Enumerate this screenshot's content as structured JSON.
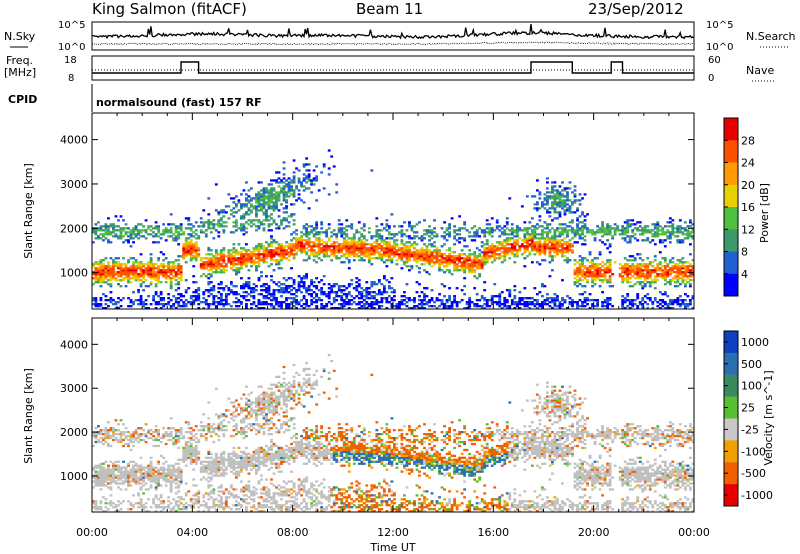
{
  "header": {
    "station": "King Salmon (fitACF)",
    "beam": "Beam 11",
    "date": "23/Sep/2012"
  },
  "noise_panel": {
    "left_label": "N.Sky",
    "right_label": "N.Search",
    "left_ticks": [
      "10^5",
      "10^0"
    ],
    "right_ticks": [
      "10^5",
      "10^0"
    ]
  },
  "freq_panel": {
    "left_label_line1": "Freq.",
    "left_label_line2": "[MHz]",
    "right_label": "Nave",
    "left_ticks": [
      "18",
      "8"
    ],
    "right_ticks": [
      "60",
      "0"
    ],
    "freq_steps": [
      {
        "start": 0.0,
        "end": 3.55,
        "level": "low"
      },
      {
        "start": 3.55,
        "end": 4.25,
        "level": "high"
      },
      {
        "start": 4.25,
        "end": 17.5,
        "level": "low"
      },
      {
        "start": 17.5,
        "end": 19.15,
        "level": "high"
      },
      {
        "start": 19.15,
        "end": 20.7,
        "level": "low"
      },
      {
        "start": 20.7,
        "end": 21.15,
        "level": "high"
      },
      {
        "start": 21.15,
        "end": 24.0,
        "level": "low"
      }
    ]
  },
  "cpid": {
    "label": "CPID",
    "value": "normalsound (fast) 157 RF"
  },
  "chart_data": [
    {
      "type": "heatmap",
      "name": "power",
      "ylabel": "Slant Range [km]",
      "y_ticks": [
        1000,
        2000,
        3000,
        4000
      ],
      "ylim": [
        180,
        4600
      ],
      "xlim": [
        0,
        24
      ],
      "colorbar_label": "Power [dB]",
      "colorbar_ticks": [
        4,
        8,
        12,
        16,
        20,
        24,
        28
      ],
      "colorbar_range": [
        0,
        32
      ],
      "colors": [
        "#0000ff",
        "#2060d0",
        "#3a9a6a",
        "#50c040",
        "#e6d000",
        "#ff9a00",
        "#ff5000",
        "#e80000"
      ]
    },
    {
      "type": "heatmap",
      "name": "velocity",
      "ylabel": "Slant Range [km]",
      "y_ticks": [
        1000,
        2000,
        3000,
        4000
      ],
      "ylim": [
        180,
        4600
      ],
      "xlim": [
        0,
        24
      ],
      "xlabel": "Time UT",
      "x_ticks": [
        "00:00",
        "04:00",
        "08:00",
        "12:00",
        "16:00",
        "20:00",
        "00:00"
      ],
      "colorbar_label": "Velocity [m s^-1]",
      "colorbar_ticks": [
        "1000",
        "500",
        "100",
        "25",
        "-25",
        "-100",
        "-500",
        "-1000"
      ],
      "colors": [
        "#1040c0",
        "#2a70b0",
        "#3a8a60",
        "#58c030",
        "#c8c8c8",
        "#f0a000",
        "#f06000",
        "#e80000"
      ]
    }
  ],
  "colors": {
    "ground_scatter": "#c0c0c0",
    "axis": "#000000"
  }
}
